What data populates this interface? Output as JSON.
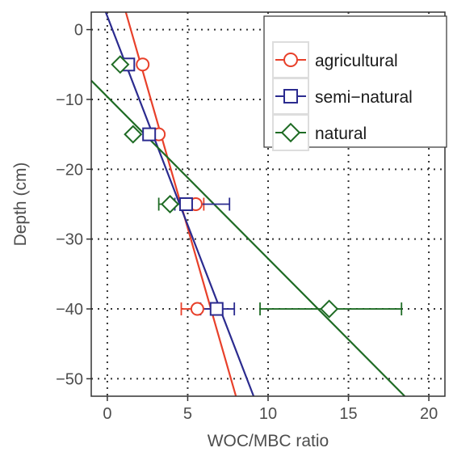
{
  "chart_data": {
    "type": "scatter",
    "xlabel": "WOC/MBC ratio",
    "ylabel": "Depth (cm)",
    "xlim": [
      -1,
      21
    ],
    "ylim": [
      -52.5,
      2.5
    ],
    "x_ticks": [
      0,
      5,
      10,
      15,
      20
    ],
    "y_ticks": [
      0,
      -10,
      -20,
      -30,
      -40,
      -50
    ],
    "grid": "dotted",
    "legend_position": "top-right",
    "series": [
      {
        "name": "agricultural",
        "color": "#e8402a",
        "marker": "circle",
        "points": [
          {
            "x": 2.2,
            "y": -5,
            "err": null
          },
          {
            "x": 3.2,
            "y": -15,
            "err": null
          },
          {
            "x": 5.5,
            "y": -25,
            "err": [
              5.0,
              6.0
            ]
          },
          {
            "x": 5.6,
            "y": -40,
            "err": [
              4.6,
              6.6
            ]
          }
        ],
        "fit": {
          "x0": 1.15,
          "y0": 2.5,
          "x1": 8.0,
          "y1": -52.5
        }
      },
      {
        "name": "semi−natural",
        "color": "#2b2b8f",
        "marker": "square",
        "points": [
          {
            "x": 1.3,
            "y": -5,
            "err": null
          },
          {
            "x": 2.6,
            "y": -15,
            "err": null
          },
          {
            "x": 4.9,
            "y": -25,
            "err": [
              4.2,
              7.6
            ]
          },
          {
            "x": 6.8,
            "y": -40,
            "err": [
              5.8,
              7.9
            ]
          }
        ],
        "fit": {
          "x0": -0.1,
          "y0": 2.5,
          "x1": 9.1,
          "y1": -52.5
        }
      },
      {
        "name": "natural",
        "color": "#1e6b24",
        "marker": "diamond",
        "points": [
          {
            "x": 0.8,
            "y": -5,
            "err": null
          },
          {
            "x": 1.6,
            "y": -15,
            "err": null
          },
          {
            "x": 3.9,
            "y": -25,
            "err": [
              3.2,
              4.6
            ]
          },
          {
            "x": 13.8,
            "y": -40,
            "err": [
              9.5,
              18.3
            ]
          }
        ],
        "fit": {
          "x0": -1.0,
          "y0": -7.3,
          "x1": 18.5,
          "y1": -52.5
        }
      }
    ]
  }
}
